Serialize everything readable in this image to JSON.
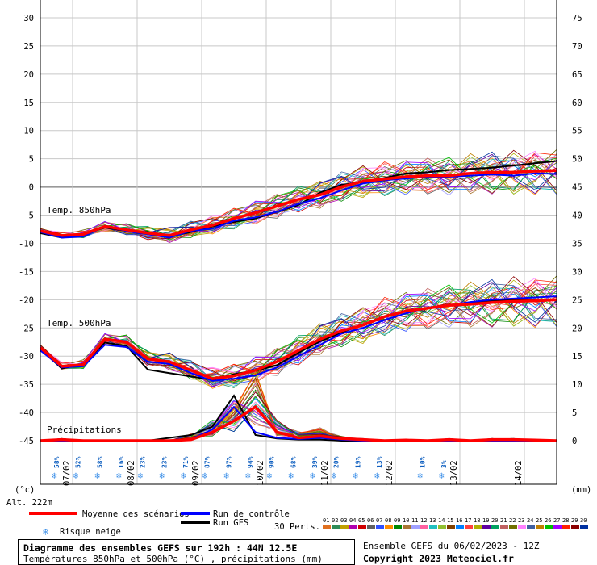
{
  "chart_data": {
    "type": "line",
    "left_axis": {
      "unit": "(°c)",
      "ticks": [
        30,
        25,
        20,
        15,
        10,
        5,
        0,
        -5,
        -10,
        -15,
        -20,
        -25,
        -30,
        -35,
        -40,
        -45
      ],
      "range": [
        -45,
        30
      ]
    },
    "right_axis": {
      "unit": "(mm)",
      "ticks": [
        75,
        70,
        65,
        60,
        55,
        50,
        45,
        40,
        35,
        30,
        25,
        20,
        15,
        10,
        5,
        0
      ],
      "range": [
        0,
        75
      ]
    },
    "x_axis": {
      "dates": [
        "07/02",
        "08/02",
        "09/02",
        "10/02",
        "11/02",
        "12/02",
        "13/02",
        "14/02"
      ],
      "hours": [
        0,
        192
      ]
    },
    "altitude": "Alt. 222m",
    "labels": {
      "t850": "Temp. 850hPa",
      "t500": "Temp. 500hPa",
      "precip": "Précipitations"
    },
    "series": [
      {
        "name": "Moyenne des scénarios",
        "color": "#ff0000",
        "t850": [
          -7.8,
          -8.6,
          -8.4,
          -7.0,
          -7.6,
          -8.2,
          -8.6,
          -7.6,
          -6.8,
          -5.6,
          -4.6,
          -3.4,
          -2.2,
          -1.4,
          0.0,
          1.0,
          1.4,
          1.8,
          2.0,
          2.0,
          2.4,
          2.6,
          2.6,
          2.8,
          2.9
        ],
        "t500": [
          -28.5,
          -31.8,
          -31.5,
          -27.0,
          -27.5,
          -30.5,
          -31.0,
          -32.5,
          -34.0,
          -33.5,
          -32.5,
          -31.0,
          -29.0,
          -27.0,
          -25.5,
          -24.5,
          -23.0,
          -22.0,
          -21.5,
          -21.0,
          -20.8,
          -20.5,
          -20.3,
          -20.2,
          -20.0
        ],
        "precip": [
          0,
          0.2,
          0,
          0,
          0,
          0,
          0,
          0.2,
          1.5,
          3.5,
          6.0,
          1.5,
          0.5,
          0.8,
          0.4,
          0.2,
          0,
          0.1,
          0,
          0.2,
          0,
          0.2,
          0.2,
          0.1,
          0
        ]
      },
      {
        "name": "Run de contrôle",
        "color": "#0000ff",
        "t850": [
          -8.0,
          -9.0,
          -8.8,
          -7.0,
          -7.8,
          -8.4,
          -9.0,
          -7.8,
          -7.4,
          -6.0,
          -5.4,
          -4.4,
          -3.0,
          -2.0,
          -0.6,
          0.6,
          1.2,
          1.5,
          1.8,
          1.8,
          2.0,
          2.2,
          2.0,
          2.4,
          2.3
        ],
        "t500": [
          -29.0,
          -32.0,
          -31.8,
          -28.0,
          -28.4,
          -31.0,
          -31.4,
          -33.0,
          -34.4,
          -34.0,
          -33.4,
          -32.0,
          -30.0,
          -28.0,
          -26.0,
          -25.0,
          -23.6,
          -22.4,
          -21.4,
          -21.0,
          -20.4,
          -20.0,
          -19.8,
          -19.6,
          -19.4
        ],
        "precip": [
          0,
          0,
          0,
          0,
          0,
          0,
          0,
          0.3,
          2.0,
          6.0,
          1.5,
          0.5,
          0.3,
          0.5,
          0.2,
          0,
          0,
          0,
          0,
          0,
          0,
          0,
          0,
          0,
          0
        ]
      },
      {
        "name": "Run GFS",
        "color": "#000000",
        "t850": [
          -8.2,
          -9.0,
          -8.4,
          -7.2,
          -7.8,
          -8.0,
          -8.8,
          -8.0,
          -7.0,
          -6.2,
          -5.6,
          -4.4,
          -3.2,
          -1.0,
          0.4,
          0.8,
          1.6,
          2.4,
          2.6,
          3.0,
          3.2,
          3.4,
          3.8,
          4.2,
          4.6
        ],
        "t500": [
          -28.8,
          -32.2,
          -31.4,
          -27.6,
          -28.2,
          -32.4,
          -33.0,
          -33.6,
          -34.2,
          -33.2,
          -32.6,
          -31.6,
          -29.4,
          -27.4,
          -25.8,
          -24.4,
          -23.0,
          -22.0,
          -21.4,
          -21.0,
          -20.6,
          -20.2,
          -20.0,
          -20.0,
          -20.0
        ],
        "precip": [
          0,
          0,
          0,
          0,
          0,
          0,
          0.5,
          1.0,
          2.5,
          8.0,
          1.0,
          0.4,
          0.2,
          0.2,
          0,
          0,
          0,
          0,
          0,
          0,
          0,
          0,
          0,
          0,
          0
        ]
      }
    ],
    "snow_risk": [
      {
        "x": 6,
        "pct": "58%"
      },
      {
        "x": 14,
        "pct": "52%"
      },
      {
        "x": 22,
        "pct": "58%"
      },
      {
        "x": 30,
        "pct": "16%"
      },
      {
        "x": 38,
        "pct": "23%"
      },
      {
        "x": 46,
        "pct": "23%"
      },
      {
        "x": 54,
        "pct": "71%"
      },
      {
        "x": 62,
        "pct": "87%"
      },
      {
        "x": 70,
        "pct": "97%"
      },
      {
        "x": 78,
        "pct": "94%"
      },
      {
        "x": 86,
        "pct": "90%"
      },
      {
        "x": 94,
        "pct": "68%"
      },
      {
        "x": 102,
        "pct": "39%"
      },
      {
        "x": 110,
        "pct": "20%"
      },
      {
        "x": 118,
        "pct": "19%"
      },
      {
        "x": 126,
        "pct": "13%"
      },
      {
        "x": 142,
        "pct": "10%"
      },
      {
        "x": 150,
        "pct": "3%"
      }
    ],
    "perturbations": {
      "label": "30 Perts.",
      "numbers": [
        "01",
        "02",
        "03",
        "04",
        "05",
        "06",
        "07",
        "08",
        "09",
        "10",
        "11",
        "12",
        "13",
        "14",
        "15",
        "16",
        "17",
        "18",
        "19",
        "20",
        "21",
        "22",
        "23",
        "24",
        "25",
        "26",
        "27",
        "28",
        "29",
        "30"
      ],
      "colors": [
        "#e07020",
        "#2e8b57",
        "#c0a000",
        "#b000b0",
        "#d00000",
        "#606060",
        "#3050ff",
        "#ff8c00",
        "#008800",
        "#aa7733",
        "#a0a0ff",
        "#ff60a0",
        "#20c0c0",
        "#90c030",
        "#804000",
        "#0080ff",
        "#ff4040",
        "#b0b000",
        "#6000a0",
        "#00a060",
        "#c06060",
        "#707000",
        "#ff80ff",
        "#4060a0",
        "#c08000",
        "#00c000",
        "#a000ff",
        "#ff2000",
        "#8b0000",
        "#0030a0"
      ]
    },
    "legend": {
      "mean": "Moyenne des scénarios",
      "control": "Run de contrôle",
      "gfs": "Run GFS",
      "snow": "Risque neige"
    }
  },
  "footer": {
    "title": "Diagramme des ensembles GEFS sur 192h : 44N 12.5E",
    "subtitle": "Températures 850hPa et 500hPa (°C) , précipitations (mm)",
    "ensemble": "Ensemble GEFS du 06/02/2023 - 12Z",
    "copyright": "Copyright 2023 Meteociel.fr"
  }
}
